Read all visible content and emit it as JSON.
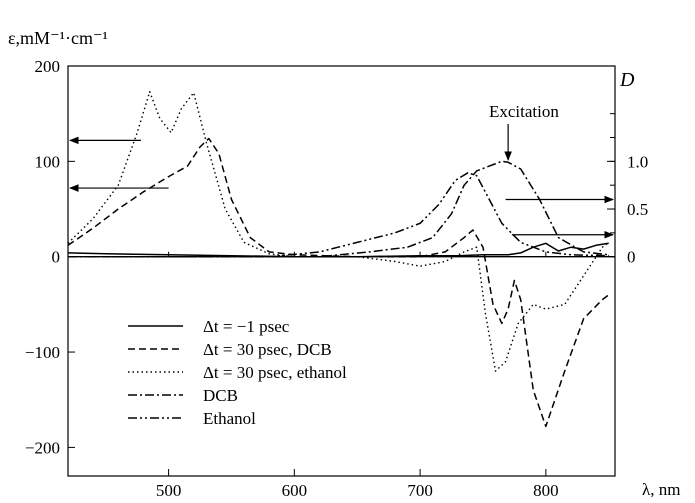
{
  "chart_data": {
    "type": "line",
    "xlabel": "λ, nm",
    "ylabel_left": "ε,mM⁻¹·cm⁻¹",
    "ylabel_right": "D",
    "xlim": [
      420,
      855
    ],
    "ylim_left": [
      -230,
      200
    ],
    "ylim_right": [
      -2.3,
      2.0
    ],
    "x_ticks": [
      500,
      600,
      700,
      800
    ],
    "y_ticks_left": [
      200,
      100,
      0,
      -100,
      -200
    ],
    "y_ticks_right": [
      1.0,
      0.5,
      0
    ],
    "annotation": "Excitation",
    "legend_position": "lower-left",
    "series": [
      {
        "name": "Δt = −1 psec",
        "axis": "left",
        "style": "solid",
        "x": [
          420,
          450,
          500,
          550,
          600,
          650,
          700,
          730,
          750,
          770,
          780,
          790,
          800,
          810,
          820,
          830,
          840,
          850
        ],
        "y": [
          4,
          3,
          2,
          1,
          0,
          0,
          1,
          1,
          2,
          2,
          4,
          10,
          14,
          6,
          10,
          8,
          12,
          14
        ]
      },
      {
        "name": "Δt = 30 psec, DCB",
        "axis": "left",
        "style": "dashed",
        "x": [
          420,
          440,
          460,
          480,
          500,
          515,
          525,
          532,
          540,
          550,
          565,
          580,
          600,
          650,
          700,
          720,
          735,
          742,
          750,
          758,
          765,
          770,
          775,
          780,
          790,
          800,
          815,
          830,
          845,
          850
        ],
        "y": [
          12,
          30,
          50,
          68,
          84,
          95,
          115,
          124,
          108,
          60,
          20,
          5,
          2,
          0,
          0,
          5,
          20,
          28,
          10,
          -50,
          -70,
          -55,
          -25,
          -45,
          -140,
          -178,
          -120,
          -65,
          -45,
          -40
        ]
      },
      {
        "name": "Δt = 30 psec, ethanol",
        "axis": "left",
        "style": "dotted",
        "x": [
          420,
          440,
          460,
          475,
          485,
          493,
          502,
          510,
          520,
          530,
          545,
          560,
          580,
          600,
          650,
          680,
          700,
          720,
          735,
          745,
          752,
          760,
          768,
          778,
          790,
          800,
          815,
          830,
          845,
          850
        ],
        "y": [
          14,
          40,
          75,
          130,
          173,
          145,
          130,
          155,
          172,
          120,
          50,
          15,
          3,
          0,
          0,
          -5,
          -10,
          -5,
          5,
          10,
          -60,
          -120,
          -110,
          -70,
          -50,
          -55,
          -50,
          -20,
          10,
          15
        ]
      },
      {
        "name": "DCB",
        "axis": "right",
        "style": "dashdot",
        "x": [
          420,
          500,
          580,
          620,
          660,
          690,
          710,
          725,
          735,
          745,
          755,
          765,
          770,
          780,
          795,
          810,
          830,
          850
        ],
        "y": [
          0,
          0,
          0,
          0,
          0.05,
          0.1,
          0.2,
          0.45,
          0.75,
          0.9,
          0.95,
          1.0,
          0.99,
          0.92,
          0.6,
          0.2,
          0.05,
          0.02
        ]
      },
      {
        "name": "Ethanol",
        "axis": "right",
        "style": "dashdotdot",
        "x": [
          420,
          500,
          580,
          620,
          650,
          680,
          700,
          715,
          728,
          738,
          745,
          755,
          765,
          780,
          800,
          820,
          850
        ],
        "y": [
          0,
          0,
          0,
          0.05,
          0.15,
          0.25,
          0.35,
          0.55,
          0.8,
          0.88,
          0.85,
          0.6,
          0.35,
          0.15,
          0.05,
          0.02,
          0.01
        ]
      }
    ]
  }
}
